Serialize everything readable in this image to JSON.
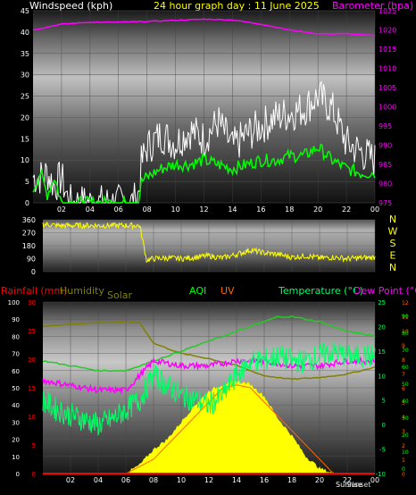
{
  "title": "24 hour graph day : 11 June 2025",
  "hour_labels": [
    "02",
    "04",
    "06",
    "08",
    "10",
    "12",
    "14",
    "16",
    "18",
    "20",
    "22",
    "00"
  ],
  "colors": {
    "title": "#ffff00",
    "wind_avg": "#00ff00",
    "gust": "#ffffff",
    "barometer": "#ff00ff",
    "direction": "#ffff00",
    "rainfall": "#ff0000",
    "humidity": "#808000",
    "solar": "#ffff00",
    "aqi": "#00ff00",
    "uv": "#ff6600",
    "temperature": "#00ff66",
    "dewpoint": "#ff00ff",
    "in_temp": "#22cc22",
    "text_white": "#ffffff"
  },
  "wind_panel": {
    "left_label": "Windspeed (kph)",
    "right_label": "Barometer (hpa)",
    "left_ticks": [
      "0",
      "5",
      "10",
      "15",
      "20",
      "25",
      "30",
      "35",
      "40",
      "45"
    ],
    "right_ticks": [
      "975",
      "980",
      "985",
      "990",
      "995",
      "1000",
      "1005",
      "1010",
      "1015",
      "1020",
      "1025"
    ]
  },
  "direction_panel": {
    "ticks": [
      "0",
      "90",
      "180",
      "270",
      "360"
    ],
    "compass": [
      "N",
      "W",
      "S",
      "E",
      "N"
    ]
  },
  "bottom_panel": {
    "labels": {
      "rainfall": "Rainfall (mm)",
      "humidity": "Humidity",
      "solar": "Solar",
      "aqi": "AQI",
      "uv": "UV",
      "temperature": "Temperature (°C)",
      "dewpoint": "Dew Point (°C)"
    },
    "humidity_ticks": [
      "0",
      "10",
      "20",
      "30",
      "40",
      "50",
      "60",
      "70",
      "80",
      "90",
      "100"
    ],
    "rain_ticks": [
      "0",
      "5",
      "10",
      "15",
      "20",
      "25",
      "30"
    ],
    "temp_ticks": [
      "-10",
      "-5",
      "0",
      "5",
      "10",
      "15",
      "20",
      "25"
    ],
    "uv_ticks": [
      "0",
      "1",
      "2",
      "3",
      "4",
      "5",
      "6",
      "7",
      "8",
      "9",
      "10",
      "11",
      "12"
    ],
    "aqi_ticks": [
      "90",
      "80",
      "70",
      "60",
      "50",
      "40",
      "30",
      "20",
      "10",
      "0"
    ],
    "sunrise_label": "Sunrise",
    "sunset_label": "Sunset"
  },
  "chart_data": [
    {
      "type": "line",
      "title": "24 hour graph day : 11 June 2025",
      "x_unit": "hour",
      "xlim": [
        0,
        24
      ],
      "series": [
        {
          "name": "Windspeed (kph)",
          "axis": "left",
          "x": [
            0,
            0.5,
            1,
            1.5,
            2,
            2.5,
            3,
            4,
            5,
            6,
            7,
            7.4,
            7.6,
            8,
            9,
            10,
            11,
            12,
            13,
            14,
            15,
            16,
            17,
            18,
            19,
            20,
            21,
            22,
            23,
            24
          ],
          "values": [
            3,
            7,
            2,
            6,
            0,
            0,
            0,
            0,
            0,
            0,
            0,
            0,
            5,
            6,
            8,
            9,
            9,
            10,
            9,
            8,
            9,
            10,
            10,
            11,
            11,
            13,
            10,
            8,
            7,
            7
          ]
        },
        {
          "name": "Gust",
          "axis": "left",
          "x": [
            0,
            0.5,
            1,
            1.5,
            2,
            2.5,
            3,
            4,
            5,
            6,
            7,
            7.4,
            7.6,
            8,
            9,
            10,
            11,
            12,
            13,
            14,
            15,
            16,
            17,
            18,
            19,
            20,
            21,
            22,
            23,
            24
          ],
          "values": [
            6,
            6,
            7,
            4,
            6,
            0,
            0,
            0,
            0,
            0,
            0,
            2,
            9,
            13,
            16,
            14,
            17,
            15,
            19,
            13,
            16,
            18,
            20,
            21,
            22,
            25,
            22,
            14,
            12,
            10
          ]
        },
        {
          "name": "Barometer (hpa)",
          "axis": "right",
          "ylim": [
            975,
            1025
          ],
          "x": [
            0,
            2,
            4,
            6,
            8,
            10,
            12,
            14,
            16,
            18,
            20,
            22,
            24
          ],
          "values": [
            1020,
            1021.5,
            1022,
            1022,
            1022.2,
            1022.5,
            1022.8,
            1022.6,
            1021.5,
            1020,
            1019,
            1019,
            1018.5
          ]
        }
      ],
      "ylim": [
        0,
        45
      ]
    },
    {
      "type": "line",
      "xlim": [
        0,
        24
      ],
      "ylim": [
        0,
        360
      ],
      "x": [
        0,
        1,
        2,
        3,
        4,
        5,
        6,
        7,
        7.5,
        8,
        9,
        10,
        11,
        12,
        13,
        14,
        15,
        16,
        17,
        18,
        19,
        20,
        21,
        22,
        23,
        24
      ],
      "values": [
        330,
        320,
        320,
        320,
        320,
        320,
        320,
        320,
        80,
        90,
        95,
        90,
        100,
        110,
        95,
        120,
        150,
        130,
        120,
        100,
        110,
        95,
        100,
        90,
        95,
        100
      ]
    },
    {
      "type": "line",
      "xlim": [
        0,
        24
      ],
      "series": [
        {
          "name": "Humidity",
          "axis": "humidity",
          "ylim": [
            0,
            100
          ],
          "x": [
            0,
            2,
            4,
            6,
            7,
            8,
            10,
            12,
            14,
            15,
            16,
            18,
            20,
            22,
            24
          ],
          "values": [
            86,
            87,
            88,
            88,
            88,
            76,
            70,
            67,
            63,
            60,
            57,
            55,
            56,
            58,
            62
          ]
        },
        {
          "name": "Solar",
          "axis": "humidity",
          "ylim": [
            0,
            100
          ],
          "x": [
            6,
            7,
            8,
            9,
            10,
            11,
            12,
            13,
            14,
            15,
            16,
            17,
            18,
            19,
            20,
            21
          ],
          "values": [
            0,
            5,
            14,
            20,
            30,
            40,
            48,
            52,
            54,
            52,
            45,
            32,
            22,
            10,
            3,
            0
          ]
        },
        {
          "name": "UV",
          "axis": "uv",
          "ylim": [
            0,
            12
          ],
          "x": [
            6,
            8,
            10,
            12,
            13,
            14,
            15,
            16,
            18,
            20,
            21
          ],
          "values": [
            0,
            1,
            3,
            5,
            6,
            6.2,
            6,
            5,
            3,
            1,
            0
          ]
        },
        {
          "name": "Temperature (°C)",
          "axis": "temp",
          "ylim": [
            -10,
            25
          ],
          "x": [
            0,
            1,
            2,
            3,
            4,
            5,
            6,
            7,
            8,
            9,
            10,
            11,
            12,
            13,
            14,
            15,
            16,
            17,
            18,
            19,
            20,
            21,
            22,
            23,
            24
          ],
          "values": [
            5,
            3,
            2,
            1,
            0,
            1,
            3,
            5,
            10,
            8,
            6,
            5,
            4,
            6,
            10,
            13,
            13,
            14,
            13,
            13,
            14,
            15,
            14,
            14,
            14
          ]
        },
        {
          "name": "Dew Point (°C)",
          "axis": "temp",
          "ylim": [
            -10,
            25
          ],
          "x": [
            0,
            2,
            4,
            6,
            8,
            10,
            12,
            14,
            16,
            18,
            20,
            22,
            24
          ],
          "values": [
            9,
            8,
            7,
            7,
            13,
            12,
            12,
            13,
            13,
            12,
            12,
            13,
            13
          ]
        },
        {
          "name": "In temp",
          "axis": "temp",
          "ylim": [
            -10,
            25
          ],
          "x": [
            0,
            2,
            4,
            6,
            7,
            8,
            10,
            12,
            14,
            16,
            17,
            18,
            20,
            22,
            24
          ],
          "values": [
            13,
            12,
            11,
            11,
            12,
            13,
            15,
            17,
            19,
            21,
            22,
            22,
            21,
            19,
            18
          ]
        },
        {
          "name": "Rainfall (mm)",
          "axis": "rain",
          "ylim": [
            0,
            30
          ],
          "x": [
            0,
            24
          ],
          "values": [
            0,
            0
          ]
        }
      ]
    }
  ]
}
